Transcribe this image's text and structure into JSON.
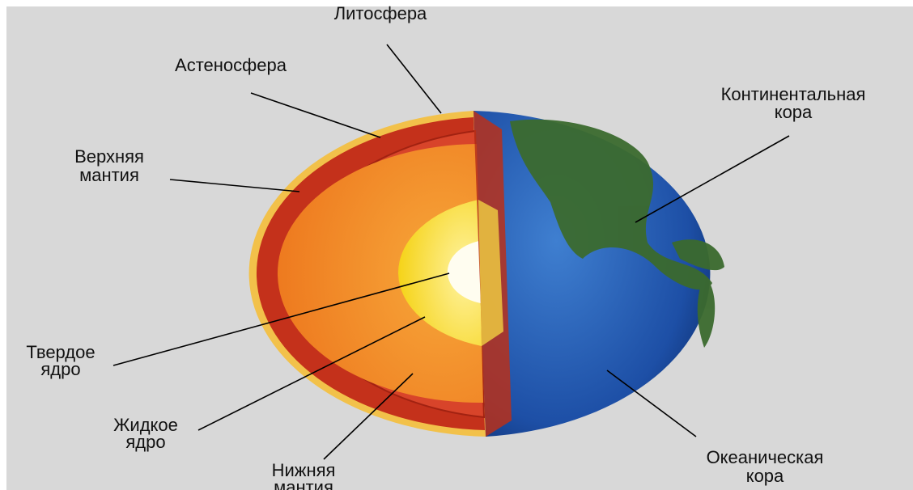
{
  "labels": [
    {
      "lines": [
        "Литосфера"
      ]
    },
    {
      "lines": [
        "Астеносфера"
      ]
    },
    {
      "lines": [
        "Верхняя",
        "мантия"
      ]
    },
    {
      "lines": [
        "Континентальная",
        "кора"
      ]
    },
    {
      "lines": [
        "Твердое",
        "ядро"
      ]
    },
    {
      "lines": [
        "Жидкое",
        "ядро"
      ]
    },
    {
      "lines": [
        "Нижняя",
        "мантия"
      ]
    },
    {
      "lines": [
        "Океаническая",
        "кора"
      ]
    }
  ]
}
